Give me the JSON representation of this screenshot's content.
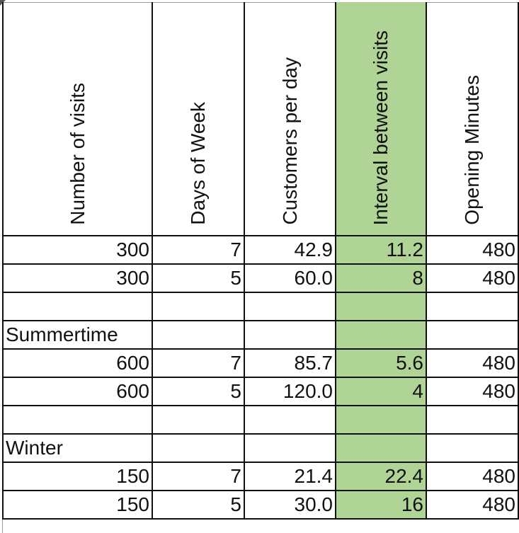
{
  "headers": [
    "Number of visits",
    "Days of Week",
    "Customers per day",
    "Interval between visits",
    "Opening Minutes"
  ],
  "highlight_color": "#b0d396",
  "rows": [
    [
      "300",
      "7",
      "42.9",
      "11.2",
      "480"
    ],
    [
      "300",
      "5",
      "60.0",
      "8",
      "480"
    ],
    [
      "",
      "",
      "",
      "",
      ""
    ],
    [
      "Summertime",
      "",
      "",
      "",
      ""
    ],
    [
      "600",
      "7",
      "85.7",
      "5.6",
      "480"
    ],
    [
      "600",
      "5",
      "120.0",
      "4",
      "480"
    ],
    [
      "",
      "",
      "",
      "",
      ""
    ],
    [
      "Winter",
      "",
      "",
      "",
      ""
    ],
    [
      "150",
      "7",
      "21.4",
      "22.4",
      "480"
    ],
    [
      "150",
      "5",
      "30.0",
      "16",
      "480"
    ]
  ]
}
